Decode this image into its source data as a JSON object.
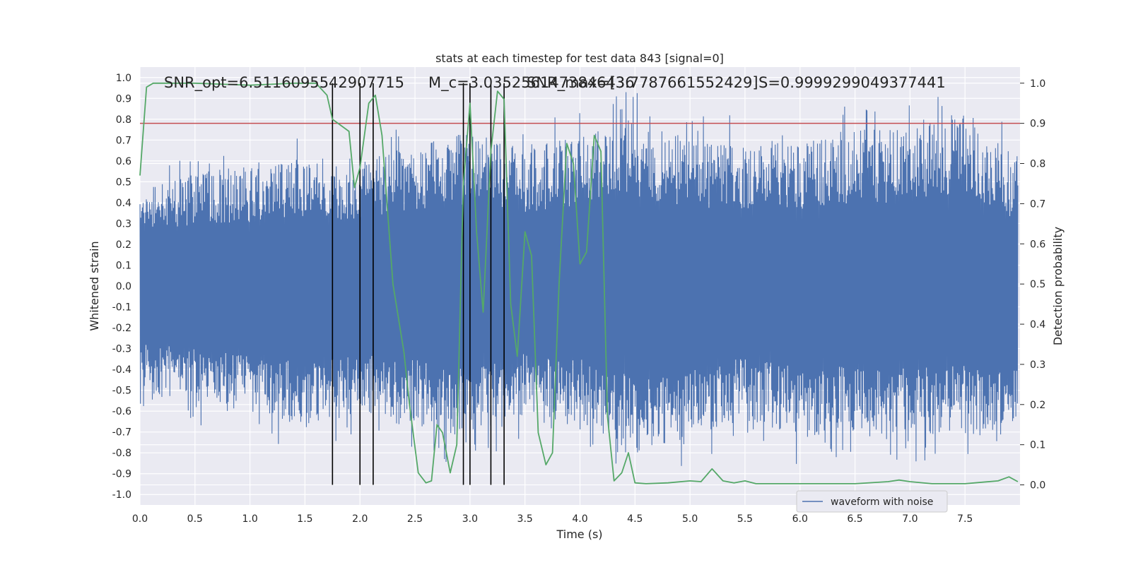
{
  "chart_data": {
    "type": "line",
    "title": "stats at each timestep for test data 843 [signal=0]",
    "xlabel": "Time (s)",
    "ylabel_left": "Whitened strain",
    "ylabel_right": "Detection probability",
    "xlim": [
      0.0,
      8.0
    ],
    "ylim_left": [
      -1.05,
      1.05
    ],
    "ylim_right": [
      -0.05,
      1.04
    ],
    "x_ticks": [
      "0.0",
      "0.5",
      "1.0",
      "1.5",
      "2.0",
      "2.5",
      "3.0",
      "3.5",
      "4.0",
      "4.5",
      "5.0",
      "5.5",
      "6.0",
      "6.5",
      "7.0",
      "7.5"
    ],
    "y_ticks_left": [
      "1.0",
      "0.9",
      "0.8",
      "0.7",
      "0.6",
      "0.5",
      "0.4",
      "0.3",
      "0.2",
      "0.1",
      "0.0",
      "-0.1",
      "-0.2",
      "-0.3",
      "-0.4",
      "-0.5",
      "-0.6",
      "-0.7",
      "-0.8",
      "-0.9",
      "-1.0"
    ],
    "y_ticks_right": [
      "1.0",
      "0.9",
      "0.8",
      "0.7",
      "0.6",
      "0.5",
      "0.4",
      "0.3",
      "0.2",
      "0.1",
      "0.0"
    ],
    "grid": true,
    "legend": {
      "position": "lower-right",
      "entries": [
        "waveform with noise"
      ]
    },
    "annotations": [
      "SNR_opt=6.5116095542907715",
      "M_c=3.0352561473846436",
      "SNR_max=[3.7787661552429]",
      "S=0.9999299049377441"
    ],
    "threshold": 0.9,
    "detection_times": [
      1.75,
      2.0,
      2.12,
      2.94,
      3.0,
      3.19,
      3.31
    ],
    "series": [
      {
        "name": "waveform with noise",
        "color": "#4c72b0",
        "envelope": {
          "x": [
            0.0,
            1.5,
            2.0,
            2.5,
            3.0,
            3.5,
            4.0,
            4.5,
            5.0,
            5.5,
            6.0,
            6.5,
            7.0,
            7.5,
            7.98
          ],
          "upper": [
            0.6,
            0.72,
            0.7,
            0.8,
            0.87,
            0.78,
            0.85,
            0.95,
            0.83,
            0.82,
            0.82,
            0.88,
            0.89,
            1.0,
            0.7
          ],
          "lower": [
            -0.6,
            -0.8,
            -0.72,
            -0.78,
            -0.9,
            -0.72,
            -0.78,
            -0.95,
            -0.85,
            -0.75,
            -0.87,
            -0.82,
            -0.85,
            -0.84,
            -0.86
          ]
        }
      },
      {
        "name": "",
        "color": "#55a868",
        "x": [
          0.0,
          0.06,
          0.12,
          0.2,
          0.5,
          1.0,
          1.4,
          1.6,
          1.7,
          1.75,
          1.9,
          1.95,
          2.0,
          2.08,
          2.14,
          2.2,
          2.3,
          2.4,
          2.45,
          2.53,
          2.6,
          2.65,
          2.7,
          2.75,
          2.82,
          2.88,
          2.94,
          3.0,
          3.06,
          3.12,
          3.19,
          3.25,
          3.31,
          3.37,
          3.43,
          3.5,
          3.56,
          3.62,
          3.69,
          3.75,
          3.81,
          3.88,
          3.94,
          4.0,
          4.06,
          4.13,
          4.19,
          4.25,
          4.31,
          4.38,
          4.44,
          4.5,
          4.6,
          4.8,
          5.0,
          5.1,
          5.2,
          5.3,
          5.4,
          5.5,
          5.6,
          6.0,
          6.5,
          6.8,
          6.9,
          7.0,
          7.2,
          7.5,
          7.8,
          7.9,
          7.98
        ],
        "y": [
          0.77,
          0.99,
          1.0,
          1.0,
          1.0,
          0.995,
          1.0,
          1.0,
          0.97,
          0.91,
          0.88,
          0.74,
          0.79,
          0.95,
          0.97,
          0.87,
          0.5,
          0.33,
          0.2,
          0.03,
          0.005,
          0.01,
          0.15,
          0.13,
          0.03,
          0.1,
          0.75,
          0.95,
          0.63,
          0.43,
          0.83,
          0.98,
          0.96,
          0.45,
          0.32,
          0.63,
          0.57,
          0.13,
          0.05,
          0.08,
          0.5,
          0.85,
          0.8,
          0.55,
          0.58,
          0.87,
          0.83,
          0.17,
          0.01,
          0.03,
          0.08,
          0.005,
          0.003,
          0.005,
          0.01,
          0.008,
          0.04,
          0.01,
          0.005,
          0.01,
          0.003,
          0.003,
          0.003,
          0.008,
          0.012,
          0.008,
          0.003,
          0.003,
          0.01,
          0.02,
          0.008
        ]
      }
    ]
  }
}
